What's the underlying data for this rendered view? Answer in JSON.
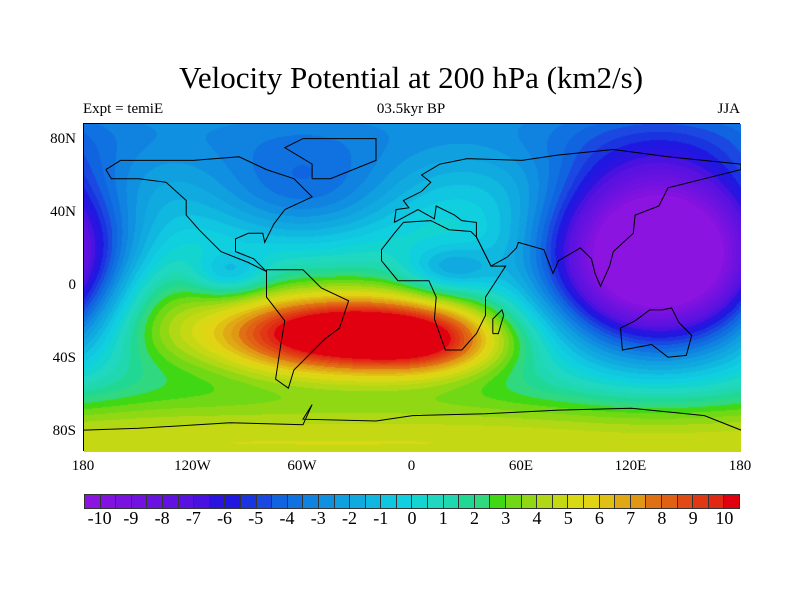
{
  "title": "Velocity Potential at 200 hPa (km2/s)",
  "subtitle_left": "Expt = temiE",
  "subtitle_center": "03.5kyr BP",
  "subtitle_right": "JJA",
  "chart_data": {
    "type": "heatmap",
    "projection": "cylindrical equidistant",
    "variable": "velocity potential, 200 hPa",
    "units": "km2/s",
    "lon_range": [
      -180,
      180
    ],
    "lat_range": [
      -90,
      90
    ],
    "lat_ticks": [
      {
        "value": 80,
        "label": "80N"
      },
      {
        "value": 40,
        "label": "40N"
      },
      {
        "value": 0,
        "label": "0"
      },
      {
        "value": -40,
        "label": "40S"
      },
      {
        "value": -80,
        "label": "80S"
      }
    ],
    "lon_ticks": [
      {
        "value": -180,
        "label": "180"
      },
      {
        "value": -120,
        "label": "120W"
      },
      {
        "value": -60,
        "label": "60W"
      },
      {
        "value": 0,
        "label": "0"
      },
      {
        "value": 60,
        "label": "60E"
      },
      {
        "value": 120,
        "label": "120E"
      },
      {
        "value": 180,
        "label": "180"
      }
    ],
    "field_features": [
      {
        "name": "minimum",
        "lon": 130,
        "lat": 15,
        "value": -10.5
      },
      {
        "name": "maximum",
        "lon": -30,
        "lat": -25,
        "value": 10.5
      },
      {
        "name": "southern high-latitude band",
        "lat": -80,
        "value": 5
      },
      {
        "name": "arctic",
        "lat": 85,
        "value": -5
      },
      {
        "name": "secondary low",
        "lon": -100,
        "lat": 10,
        "value": -2
      },
      {
        "name": "secondary low",
        "lon": 20,
        "lat": 12,
        "value": -1
      }
    ],
    "levels_interval": 0.5,
    "colorbar_labels": [
      "-10",
      "-9",
      "-8",
      "-7",
      "-6",
      "-5",
      "-4",
      "-3",
      "-2",
      "-1",
      "0",
      "1",
      "2",
      "3",
      "4",
      "5",
      "6",
      "7",
      "8",
      "9",
      "10"
    ],
    "colorbar_min": -10,
    "colorbar_max": 10,
    "colors": [
      "#8c14e0",
      "#8212e0",
      "#7a12e0",
      "#7212e0",
      "#6a12e0",
      "#6212e0",
      "#5a12e0",
      "#4a12e0",
      "#2c14e0",
      "#2018e0",
      "#1a34e0",
      "#1a48e0",
      "#1064e0",
      "#1072e0",
      "#1082e0",
      "#1090e0",
      "#10a0e0",
      "#10aae0",
      "#10b8e0",
      "#10c6e0",
      "#10d0e0",
      "#14d4d0",
      "#20d8c0",
      "#20d8b0",
      "#20d894",
      "#30d880",
      "#40d814",
      "#70d814",
      "#90d814",
      "#b0d814",
      "#c4d814",
      "#d8d814",
      "#e0d414",
      "#e0c014",
      "#e0a814",
      "#e09814",
      "#e07014",
      "#e06014",
      "#e04a14",
      "#e03814",
      "#e02814",
      "#e00010"
    ]
  }
}
